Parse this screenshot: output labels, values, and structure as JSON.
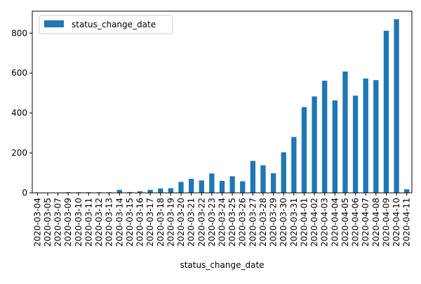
{
  "chart_data": {
    "type": "bar",
    "xlabel": "status_change_date",
    "ylabel": "",
    "ylim": [
      0,
      910
    ],
    "yticks": [
      0,
      200,
      400,
      600,
      800
    ],
    "grid": false,
    "legend_position": "top-left",
    "colors": {
      "bar": "#1f77b4"
    },
    "categories": [
      "2020-03-04",
      "2020-03-05",
      "2020-03-07",
      "2020-03-09",
      "2020-03-10",
      "2020-03-11",
      "2020-03-12",
      "2020-03-13",
      "2020-03-14",
      "2020-03-15",
      "2020-03-16",
      "2020-03-17",
      "2020-03-18",
      "2020-03-19",
      "2020-03-20",
      "2020-03-21",
      "2020-03-22",
      "2020-03-23",
      "2020-03-24",
      "2020-03-25",
      "2020-03-26",
      "2020-03-27",
      "2020-03-28",
      "2020-03-29",
      "2020-03-30",
      "2020-03-31",
      "2020-04-01",
      "2020-04-02",
      "2020-04-03",
      "2020-04-04",
      "2020-04-05",
      "2020-04-06",
      "2020-04-07",
      "2020-04-08",
      "2020-04-09",
      "2020-04-10",
      "2020-04-11"
    ],
    "series": [
      {
        "name": "status_change_date",
        "values": [
          2,
          1,
          1,
          3,
          3,
          3,
          3,
          3,
          15,
          4,
          8,
          15,
          22,
          23,
          55,
          70,
          62,
          97,
          60,
          83,
          58,
          160,
          138,
          98,
          203,
          280,
          430,
          483,
          562,
          463,
          608,
          487,
          573,
          565,
          812,
          870,
          18
        ]
      }
    ]
  }
}
